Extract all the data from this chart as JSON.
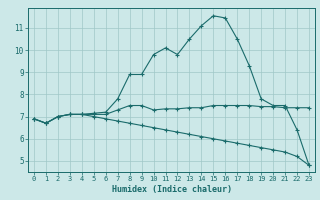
{
  "bg_color": "#cce8e8",
  "grid_color": "#a0c8c8",
  "line_color": "#1a6b6b",
  "xlabel": "Humidex (Indice chaleur)",
  "xlim": [
    -0.5,
    23.5
  ],
  "ylim": [
    4.5,
    11.9
  ],
  "yticks": [
    5,
    6,
    7,
    8,
    9,
    10,
    11
  ],
  "xticks": [
    0,
    1,
    2,
    3,
    4,
    5,
    6,
    7,
    8,
    9,
    10,
    11,
    12,
    13,
    14,
    15,
    16,
    17,
    18,
    19,
    20,
    21,
    22,
    23
  ],
  "series1_x": [
    0,
    1,
    2,
    3,
    4,
    5,
    6,
    7,
    8,
    9,
    10,
    11,
    12,
    13,
    14,
    15,
    16,
    17,
    18,
    19,
    20,
    21,
    22,
    23
  ],
  "series1_y": [
    6.9,
    6.7,
    7.0,
    7.1,
    7.1,
    7.1,
    7.1,
    7.3,
    7.5,
    7.5,
    7.3,
    7.35,
    7.35,
    7.4,
    7.4,
    7.5,
    7.5,
    7.5,
    7.5,
    7.45,
    7.45,
    7.4,
    7.4,
    7.4
  ],
  "series2_x": [
    0,
    1,
    2,
    3,
    4,
    5,
    6,
    7,
    8,
    9,
    10,
    11,
    12,
    13,
    14,
    15,
    16,
    17,
    18,
    19,
    20,
    21,
    22,
    23
  ],
  "series2_y": [
    6.9,
    6.7,
    7.0,
    7.1,
    7.1,
    7.15,
    7.2,
    7.8,
    8.9,
    8.9,
    9.8,
    10.1,
    9.8,
    10.5,
    11.1,
    11.55,
    11.45,
    10.5,
    9.3,
    7.8,
    7.5,
    7.5,
    6.4,
    4.8
  ],
  "series3_x": [
    0,
    1,
    2,
    3,
    4,
    5,
    6,
    7,
    8,
    9,
    10,
    11,
    12,
    13,
    14,
    15,
    16,
    17,
    18,
    19,
    20,
    21,
    22,
    23
  ],
  "series3_y": [
    6.9,
    6.7,
    7.0,
    7.1,
    7.1,
    7.0,
    6.9,
    6.8,
    6.7,
    6.6,
    6.5,
    6.4,
    6.3,
    6.2,
    6.1,
    6.0,
    5.9,
    5.8,
    5.7,
    5.6,
    5.5,
    5.4,
    5.2,
    4.8
  ]
}
